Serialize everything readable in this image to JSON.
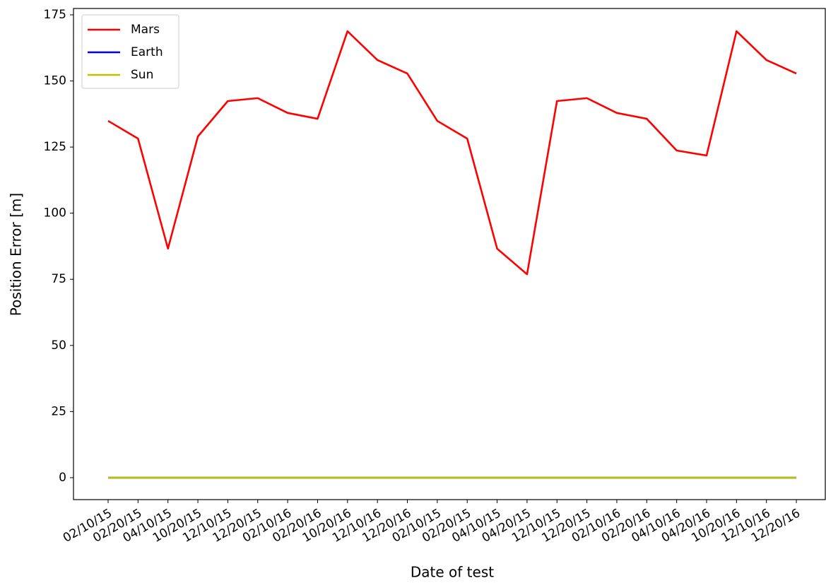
{
  "chart_data": {
    "type": "line",
    "xlabel": "Date of test",
    "ylabel": "Position Error [m]",
    "categories": [
      "02/10/15",
      "02/20/15",
      "04/10/15",
      "10/20/15",
      "12/10/15",
      "12/20/15",
      "02/10/16",
      "02/20/16",
      "10/20/16",
      "12/10/16",
      "12/20/16",
      "02/10/15",
      "02/20/15",
      "04/10/15",
      "04/20/15",
      "12/10/15",
      "12/20/15",
      "02/10/16",
      "02/20/16",
      "04/10/16",
      "04/20/16",
      "10/20/16",
      "12/10/16",
      "12/20/16"
    ],
    "series": [
      {
        "name": "Mars",
        "color": "#ff0000",
        "values": [
          134.9,
          128.2,
          86.6,
          129.0,
          142.4,
          143.5,
          137.9,
          135.7,
          168.8,
          157.9,
          152.8,
          134.9,
          128.2,
          86.6,
          76.9,
          142.4,
          143.5,
          137.9,
          135.7,
          123.7,
          121.8,
          168.8,
          157.9,
          152.8
        ]
      },
      {
        "name": "Earth",
        "color": "#0000ff",
        "values": [
          0,
          0,
          0,
          0,
          0,
          0,
          0,
          0,
          0,
          0,
          0,
          0,
          0,
          0,
          0,
          0,
          0,
          0,
          0,
          0,
          0,
          0,
          0,
          0
        ]
      },
      {
        "name": "Sun",
        "color": "#bfbf00",
        "values": [
          0,
          0,
          0,
          0,
          0,
          0,
          0,
          0,
          0,
          0,
          0,
          0,
          0,
          0,
          0,
          0,
          0,
          0,
          0,
          0,
          0,
          0,
          0,
          0
        ]
      }
    ],
    "ylim": [
      -8.3,
      177.4
    ],
    "yticks": [
      0,
      25,
      50,
      75,
      100,
      125,
      150,
      175
    ],
    "grid": false,
    "legend": "upper left"
  }
}
